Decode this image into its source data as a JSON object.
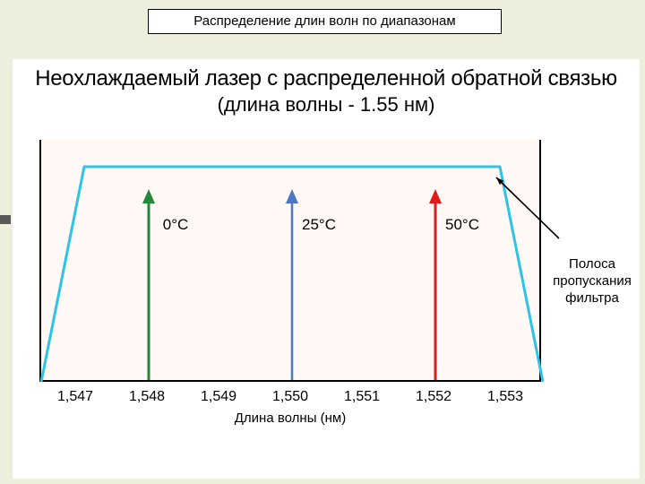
{
  "page_title": "Распределение длин волн по диапазонам",
  "figure": {
    "type": "line-spectrum",
    "title_line1": "Неохлаждаемый лазер с распределенной обратной связью",
    "title_line2": "(длина волны - 1.55 нм)",
    "xlabel": "Длина волны (нм)",
    "background_color": "#fff8f4",
    "border_color": "#000000",
    "page_bg": "#eeeedc",
    "xlim": [
      1546.5,
      1553.5
    ],
    "xticks": [
      1547,
      1548,
      1549,
      1550,
      1551,
      1552,
      1553
    ],
    "xtick_labels": [
      "1,547",
      "1,548",
      "1,549",
      "1,550",
      "1,551",
      "1,552",
      "1,553"
    ],
    "filter": {
      "color": "#2cc3e8",
      "stroke_width": 3,
      "points_x": [
        1546.5,
        1547.1,
        1552.9,
        1553.5
      ],
      "points_y": [
        0,
        1,
        1,
        0
      ]
    },
    "arrows": [
      {
        "x": 1548,
        "label": "0°C",
        "color": "#1f8a3b",
        "width": 3
      },
      {
        "x": 1550,
        "label": "25°C",
        "color": "#4a78c7",
        "width": 2.5
      },
      {
        "x": 1552,
        "label": "50°C",
        "color": "#e11a1a",
        "width": 3
      }
    ],
    "arrow_label_fontsize": 17,
    "xtick_fontsize": 16,
    "annotation": {
      "text_lines": [
        "Полоса",
        "пропускания",
        "фильтра"
      ],
      "pointer_from_x": 1554.0,
      "pointer_to_x": 1552.8,
      "color": "#000000"
    }
  }
}
